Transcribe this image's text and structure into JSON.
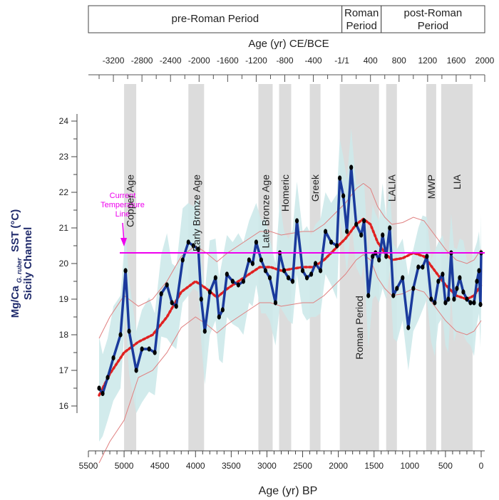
{
  "chart_data": {
    "type": "line",
    "xlabel": "Age (yr) BP",
    "top_axis_label": "Age (yr) CE/BCE",
    "ylabel_line1": "Mg/Ca",
    "ylabel_sub": "G. ruber",
    "ylabel_line2": "SST (°C)",
    "ylabel_line3": "Sicily Channel",
    "xlim": [
      5500,
      -50
    ],
    "ylim": [
      15,
      24.5
    ],
    "x_ticks": [
      5500,
      5000,
      4500,
      4000,
      3500,
      3000,
      2500,
      2000,
      1500,
      1000,
      500,
      0
    ],
    "x_tick_labels": [
      "5500",
      "5000",
      "4500",
      "4000",
      "3500",
      "3000",
      "2500",
      "2000",
      "1500",
      "1000",
      "500",
      "0"
    ],
    "y_ticks": [
      16,
      17,
      18,
      19,
      20,
      21,
      22,
      23,
      24
    ],
    "y_tick_labels": [
      "16",
      "17",
      "18",
      "19",
      "20",
      "21",
      "22",
      "23",
      "24"
    ],
    "top_ticks_ce": [
      -3200,
      -2800,
      -2400,
      -2000,
      -1600,
      -1200,
      -800,
      -400,
      0,
      400,
      800,
      1200,
      1600,
      2000
    ],
    "top_tick_labels": [
      "-3200",
      "-2800",
      "-2400",
      "-2000",
      "-1600",
      "-1200",
      "-800",
      "-400",
      "-1/1",
      "400",
      "800",
      "1200",
      "1600",
      "2000"
    ],
    "periods": [
      {
        "label": "pre-Roman Period",
        "from_bp": 5500,
        "to_bp": 1950
      },
      {
        "label": "Roman\nPeriod",
        "from_bp": 1950,
        "to_bp": 1400
      },
      {
        "label": "post-Roman\nPeriod",
        "from_bp": 1400,
        "to_bp": -50
      }
    ],
    "bands": [
      {
        "label": "Copper Age",
        "from_bp": 5000,
        "to_bp": 4830
      },
      {
        "label": "Early Bronze Age",
        "from_bp": 4100,
        "to_bp": 3880
      },
      {
        "label": "Late Bronze Age",
        "from_bp": 3120,
        "to_bp": 2920
      },
      {
        "label": "Homeric",
        "from_bp": 2830,
        "to_bp": 2660
      },
      {
        "label": "Greek",
        "from_bp": 2400,
        "to_bp": 2250
      },
      {
        "label": "Roman Period",
        "from_bp": 1980,
        "to_bp": 1430
      },
      {
        "label": "LALIA",
        "from_bp": 1330,
        "to_bp": 1180
      },
      {
        "label": "MWP",
        "from_bp": 770,
        "to_bp": 630
      },
      {
        "label": "LIA",
        "from_bp": 560,
        "to_bp": 120
      }
    ],
    "reference_line": {
      "label": "Current\nTemperature\nLine",
      "y": 20.3,
      "color": "#ee00ee"
    },
    "series": [
      {
        "color": "#1a3a9c",
        "x": [
          5350,
          5300,
          5230,
          5150,
          5050,
          4980,
          4930,
          4830,
          4750,
          4650,
          4570,
          4480,
          4400,
          4330,
          4270,
          4180,
          4100,
          4030,
          3960,
          3920,
          3870,
          3800,
          3720,
          3670,
          3620,
          3560,
          3480,
          3400,
          3330,
          3250,
          3200,
          3150,
          3080,
          3020,
          2960,
          2880,
          2820,
          2760,
          2700,
          2640,
          2580,
          2500,
          2440,
          2380,
          2320,
          2250,
          2180,
          2100,
          2020,
          1980,
          1930,
          1880,
          1820,
          1750,
          1680,
          1640,
          1580,
          1520,
          1480,
          1430,
          1380,
          1330,
          1280,
          1230,
          1180,
          1100,
          1020,
          950,
          880,
          820,
          760,
          700,
          650,
          600,
          540,
          500,
          460,
          420,
          380,
          340,
          300,
          250,
          200,
          150,
          100,
          60,
          30,
          10,
          0
        ],
        "y": [
          16.5,
          16.35,
          16.8,
          17.35,
          18.0,
          19.8,
          18.1,
          17.0,
          17.6,
          17.6,
          17.5,
          19.15,
          19.4,
          18.9,
          18.8,
          20.1,
          20.6,
          20.5,
          20.4,
          19.0,
          18.1,
          19.2,
          19.6,
          18.5,
          18.7,
          19.7,
          19.5,
          19.4,
          19.5,
          20.1,
          20.0,
          20.6,
          20.1,
          19.8,
          19.6,
          18.9,
          20.3,
          19.8,
          19.6,
          19.5,
          21.2,
          19.8,
          19.6,
          19.7,
          20.0,
          19.8,
          20.9,
          20.6,
          20.5,
          22.4,
          21.9,
          20.9,
          22.7,
          21.1,
          20.8,
          21.2,
          19.1,
          20.2,
          20.3,
          20.1,
          20.8,
          20.2,
          21.0,
          19.1,
          19.3,
          19.6,
          18.2,
          19.3,
          19.9,
          19.9,
          20.2,
          19.0,
          18.9,
          19.5,
          19.7,
          18.9,
          19.0,
          20.3,
          19.0,
          19.3,
          19.6,
          19.2,
          19.0,
          18.9,
          18.9,
          19.5,
          19.8,
          18.85,
          20.3
        ]
      },
      {
        "color": "#e02020",
        "x": [
          5350,
          5200,
          5000,
          4800,
          4600,
          4400,
          4200,
          4000,
          3850,
          3700,
          3550,
          3400,
          3250,
          3100,
          2950,
          2800,
          2650,
          2500,
          2350,
          2200,
          2050,
          1900,
          1750,
          1650,
          1550,
          1450,
          1350,
          1250,
          1100,
          950,
          800,
          650,
          500,
          350,
          200,
          100,
          0
        ],
        "y": [
          16.3,
          16.9,
          17.5,
          17.8,
          18.0,
          18.5,
          19.2,
          19.5,
          19.3,
          19.05,
          19.3,
          19.5,
          19.7,
          19.9,
          19.9,
          19.8,
          19.85,
          19.9,
          19.9,
          20.1,
          20.4,
          20.7,
          21.1,
          21.25,
          21.1,
          20.6,
          20.3,
          20.1,
          20.15,
          20.3,
          20.2,
          19.8,
          19.4,
          19.1,
          19.0,
          19.1,
          19.4
        ]
      }
    ]
  }
}
